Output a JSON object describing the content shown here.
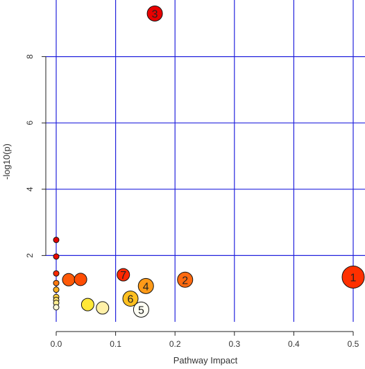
{
  "chart_data": {
    "type": "scatter",
    "title": "",
    "xlabel": "Pathway Impact",
    "ylabel": "-log10(p)",
    "xlim": [
      -0.0,
      0.5
    ],
    "ylim": [
      0,
      9.6
    ],
    "xticks": [
      0.0,
      0.1,
      0.2,
      0.3,
      0.4,
      0.5
    ],
    "xtick_labels": [
      "0.0",
      "0.1",
      "0.2",
      "0.3",
      "0.4",
      "0.5"
    ],
    "yticks": [
      2,
      4,
      6,
      8
    ],
    "ytick_labels": [
      "2",
      "4",
      "6",
      "8"
    ],
    "grid": true,
    "grid_color": "#2222dd",
    "marker_edge_color": "#111111",
    "points": [
      {
        "x": 0.5,
        "y": 1.35,
        "label": "1",
        "color": "#ff3000",
        "size": "large"
      },
      {
        "x": 0.217,
        "y": 1.27,
        "label": "2",
        "color": "#ff6a10",
        "size": "medium"
      },
      {
        "x": 0.166,
        "y": 9.3,
        "label": "3",
        "color": "#e80000",
        "size": "medium"
      },
      {
        "x": 0.151,
        "y": 1.08,
        "label": "4",
        "color": "#ff9a18",
        "size": "medium"
      },
      {
        "x": 0.143,
        "y": 0.37,
        "label": "5",
        "color": "#fffff4",
        "size": "medium"
      },
      {
        "x": 0.125,
        "y": 0.7,
        "label": "6",
        "color": "#ffc020",
        "size": "medium"
      },
      {
        "x": 0.113,
        "y": 1.42,
        "label": "7",
        "color": "#ff2800",
        "size": "small"
      },
      {
        "x": 0.0,
        "y": 2.47,
        "label": "",
        "color": "#e40000",
        "size": "tiny"
      },
      {
        "x": 0.0,
        "y": 1.97,
        "label": "",
        "color": "#ec0a00",
        "size": "tiny"
      },
      {
        "x": 0.0,
        "y": 1.46,
        "label": "",
        "color": "#ff2a00",
        "size": "tiny"
      },
      {
        "x": 0.0,
        "y": 1.17,
        "label": "",
        "color": "#ff7a10",
        "size": "tiny"
      },
      {
        "x": 0.0,
        "y": 0.97,
        "label": "",
        "color": "#ffb020",
        "size": "tiny"
      },
      {
        "x": 0.0,
        "y": 0.75,
        "label": "",
        "color": "#ffd040",
        "size": "tiny"
      },
      {
        "x": 0.0,
        "y": 0.66,
        "label": "",
        "color": "#ffe070",
        "size": "tiny"
      },
      {
        "x": 0.0,
        "y": 0.57,
        "label": "",
        "color": "#ffee90",
        "size": "tiny"
      },
      {
        "x": 0.0,
        "y": 0.44,
        "label": "",
        "color": "#fffbd8",
        "size": "tiny"
      },
      {
        "x": 0.021,
        "y": 1.27,
        "label": "",
        "color": "#ff5a08",
        "size": "small"
      },
      {
        "x": 0.041,
        "y": 1.28,
        "label": "",
        "color": "#ff4d04",
        "size": "small"
      },
      {
        "x": 0.053,
        "y": 0.52,
        "label": "",
        "color": "#ffe838",
        "size": "small"
      },
      {
        "x": 0.078,
        "y": 0.42,
        "label": "",
        "color": "#fff0a8",
        "size": "small"
      }
    ]
  }
}
